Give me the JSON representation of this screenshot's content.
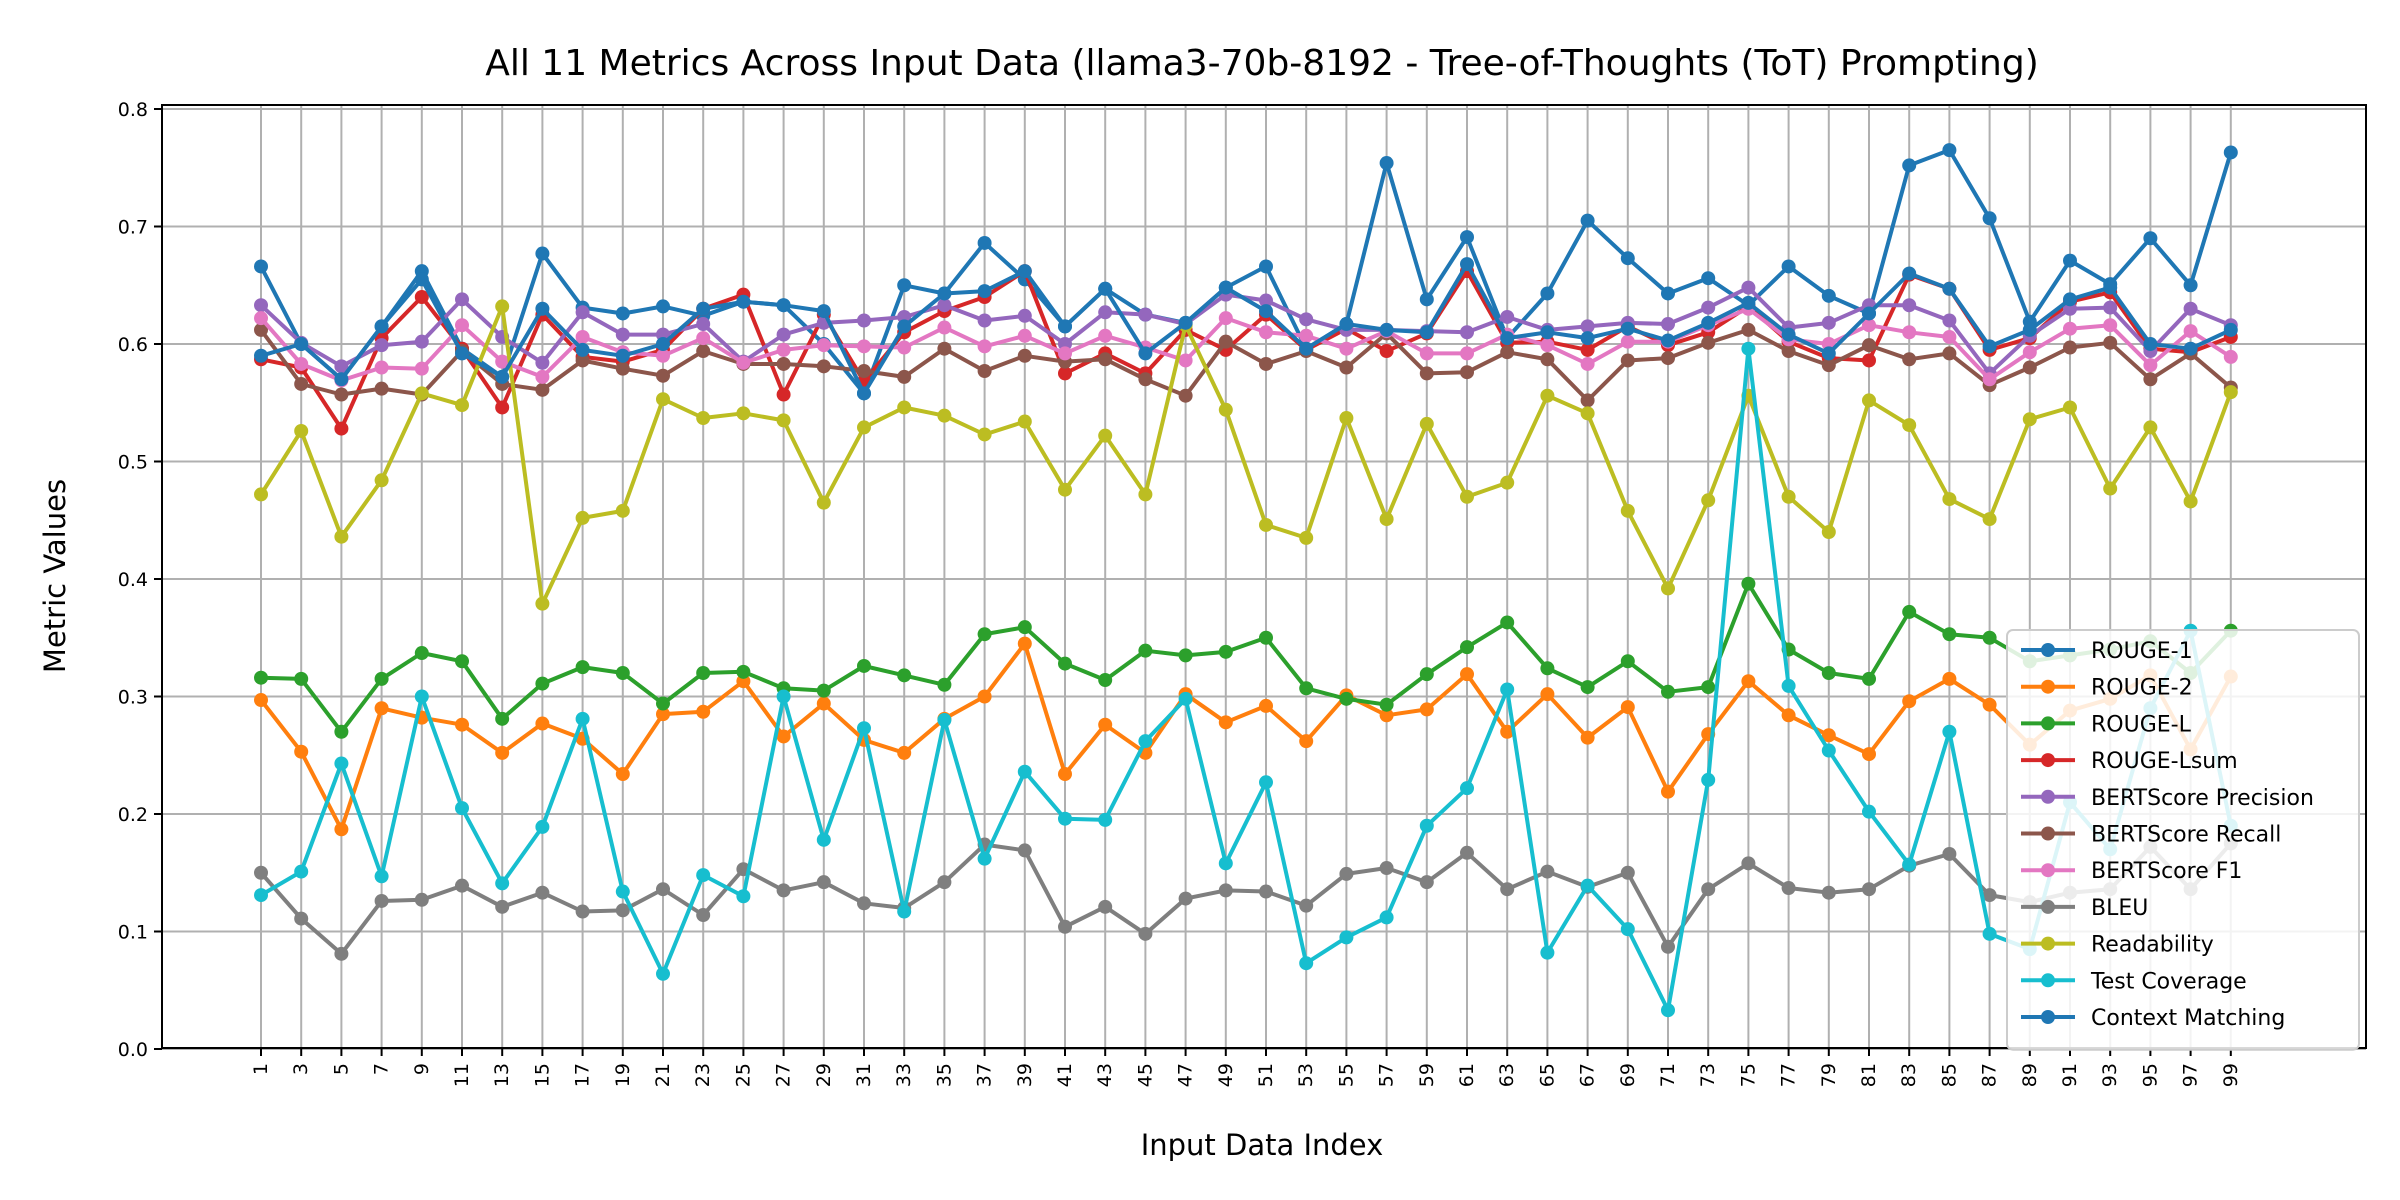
{
  "chart_data": {
    "type": "line",
    "title": "All 11 Metrics Across Input Data (llama3-70b-8192 - Tree-of-Thoughts (ToT) Prompting)",
    "xlabel": "Input Data Index",
    "ylabel": "Metric Values",
    "ylim": [
      0.0,
      0.8
    ],
    "yticks": [
      "0.0",
      "0.1",
      "0.2",
      "0.3",
      "0.4",
      "0.5",
      "0.6",
      "0.7",
      "0.8"
    ],
    "x": [
      1,
      3,
      5,
      7,
      9,
      11,
      13,
      15,
      17,
      19,
      21,
      23,
      25,
      27,
      29,
      31,
      33,
      35,
      37,
      39,
      41,
      43,
      45,
      47,
      49,
      51,
      53,
      55,
      57,
      59,
      61,
      63,
      65,
      67,
      69,
      71,
      73,
      75,
      77,
      79,
      81,
      83,
      85,
      87,
      89,
      91,
      93,
      95,
      97,
      99
    ],
    "xticks": [
      "1",
      "3",
      "5",
      "7",
      "9",
      "11",
      "13",
      "15",
      "17",
      "19",
      "21",
      "23",
      "25",
      "27",
      "29",
      "31",
      "33",
      "35",
      "37",
      "39",
      "41",
      "43",
      "45",
      "47",
      "49",
      "51",
      "53",
      "55",
      "57",
      "59",
      "61",
      "63",
      "65",
      "67",
      "69",
      "71",
      "73",
      "75",
      "77",
      "79",
      "81",
      "83",
      "85",
      "87",
      "89",
      "91",
      "93",
      "95",
      "97",
      "99"
    ],
    "grid": true,
    "legend_position": "lower-right",
    "series": [
      {
        "name": "ROUGE-1",
        "color": "#1f77b4",
        "values": [
          0.666,
          0.6,
          0.57,
          0.615,
          0.662,
          0.596,
          0.572,
          0.677,
          0.631,
          0.626,
          0.632,
          0.624,
          0.636,
          0.633,
          0.6,
          0.558,
          0.65,
          0.643,
          0.686,
          0.655,
          0.615,
          0.647,
          0.625,
          0.618,
          0.648,
          0.666,
          0.596,
          0.617,
          0.754,
          0.638,
          0.691,
          0.605,
          0.643,
          0.705,
          0.673,
          0.643,
          0.656,
          0.633,
          0.666,
          0.641,
          0.626,
          0.752,
          0.765,
          0.707,
          0.619,
          0.671,
          0.651,
          0.69,
          0.65,
          0.763
        ]
      },
      {
        "name": "ROUGE-2",
        "color": "#ff7f0e",
        "values": [
          0.297,
          0.253,
          0.187,
          0.29,
          0.282,
          0.276,
          0.252,
          0.277,
          0.264,
          0.234,
          0.285,
          0.287,
          0.313,
          0.266,
          0.294,
          0.263,
          0.252,
          0.281,
          0.3,
          0.345,
          0.234,
          0.276,
          0.252,
          0.302,
          0.278,
          0.292,
          0.262,
          0.301,
          0.284,
          0.289,
          0.319,
          0.27,
          0.302,
          0.265,
          0.291,
          0.219,
          0.268,
          0.313,
          0.284,
          0.267,
          0.251,
          0.296,
          0.315,
          0.293,
          0.259,
          0.288,
          0.298,
          0.318,
          0.255,
          0.317
        ]
      },
      {
        "name": "ROUGE-L",
        "color": "#2ca02c",
        "values": [
          0.316,
          0.315,
          0.27,
          0.315,
          0.337,
          0.33,
          0.281,
          0.311,
          0.325,
          0.32,
          0.294,
          0.32,
          0.321,
          0.307,
          0.305,
          0.326,
          0.318,
          0.31,
          0.353,
          0.359,
          0.328,
          0.314,
          0.339,
          0.335,
          0.338,
          0.35,
          0.307,
          0.298,
          0.293,
          0.319,
          0.342,
          0.363,
          0.324,
          0.308,
          0.33,
          0.304,
          0.308,
          0.396,
          0.34,
          0.32,
          0.315,
          0.372,
          0.353,
          0.35,
          0.33,
          0.335,
          0.34,
          0.347,
          0.32,
          0.356
        ]
      },
      {
        "name": "ROUGE-Lsum",
        "color": "#d62728",
        "values": [
          0.587,
          0.58,
          0.528,
          0.605,
          0.64,
          0.596,
          0.546,
          0.625,
          0.589,
          0.585,
          0.595,
          0.63,
          0.642,
          0.557,
          0.625,
          0.568,
          0.61,
          0.628,
          0.64,
          0.662,
          0.575,
          0.592,
          0.575,
          0.612,
          0.595,
          0.625,
          0.595,
          0.613,
          0.594,
          0.609,
          0.662,
          0.601,
          0.602,
          0.595,
          0.615,
          0.599,
          0.61,
          0.632,
          0.602,
          0.588,
          0.586,
          0.659,
          0.647,
          0.595,
          0.605,
          0.636,
          0.644,
          0.596,
          0.593,
          0.606
        ]
      },
      {
        "name": "BERTScore Precision",
        "color": "#9467bd",
        "values": [
          0.633,
          0.601,
          0.581,
          0.599,
          0.602,
          0.638,
          0.606,
          0.584,
          0.627,
          0.608,
          0.608,
          0.617,
          0.585,
          0.608,
          0.618,
          0.62,
          0.623,
          0.633,
          0.62,
          0.624,
          0.6,
          0.627,
          0.625,
          0.617,
          0.642,
          0.637,
          0.621,
          0.612,
          0.612,
          0.611,
          0.61,
          0.623,
          0.612,
          0.615,
          0.618,
          0.617,
          0.631,
          0.648,
          0.614,
          0.618,
          0.633,
          0.633,
          0.62,
          0.575,
          0.607,
          0.63,
          0.631,
          0.594,
          0.63,
          0.616
        ]
      },
      {
        "name": "BERTScore Recall",
        "color": "#8c564b",
        "values": [
          0.612,
          0.566,
          0.557,
          0.562,
          0.557,
          0.594,
          0.566,
          0.561,
          0.586,
          0.579,
          0.573,
          0.594,
          0.583,
          0.583,
          0.581,
          0.577,
          0.572,
          0.596,
          0.577,
          0.59,
          0.585,
          0.587,
          0.57,
          0.556,
          0.602,
          0.583,
          0.594,
          0.58,
          0.609,
          0.575,
          0.576,
          0.593,
          0.587,
          0.552,
          0.586,
          0.588,
          0.601,
          0.612,
          0.594,
          0.582,
          0.599,
          0.587,
          0.592,
          0.565,
          0.58,
          0.597,
          0.601,
          0.57,
          0.592,
          0.563
        ]
      },
      {
        "name": "BERTScore F1",
        "color": "#e377c2",
        "values": [
          0.622,
          0.583,
          0.569,
          0.58,
          0.579,
          0.616,
          0.585,
          0.572,
          0.606,
          0.593,
          0.59,
          0.605,
          0.584,
          0.595,
          0.599,
          0.598,
          0.597,
          0.614,
          0.598,
          0.607,
          0.592,
          0.607,
          0.597,
          0.586,
          0.622,
          0.61,
          0.607,
          0.596,
          0.611,
          0.592,
          0.592,
          0.608,
          0.599,
          0.583,
          0.602,
          0.602,
          0.616,
          0.63,
          0.604,
          0.6,
          0.616,
          0.61,
          0.606,
          0.57,
          0.593,
          0.613,
          0.616,
          0.582,
          0.611,
          0.589
        ]
      },
      {
        "name": "BLEU",
        "color": "#7f7f7f",
        "values": [
          0.15,
          0.111,
          0.081,
          0.126,
          0.127,
          0.139,
          0.121,
          0.133,
          0.117,
          0.118,
          0.136,
          0.114,
          0.153,
          0.135,
          0.142,
          0.124,
          0.12,
          0.142,
          0.174,
          0.169,
          0.104,
          0.121,
          0.098,
          0.128,
          0.135,
          0.134,
          0.122,
          0.149,
          0.154,
          0.142,
          0.167,
          0.136,
          0.151,
          0.138,
          0.15,
          0.087,
          0.136,
          0.158,
          0.137,
          0.133,
          0.136,
          0.156,
          0.166,
          0.131,
          0.125,
          0.133,
          0.136,
          0.172,
          0.136,
          0.175
        ]
      },
      {
        "name": "Readability",
        "color": "#bcbd22",
        "values": [
          0.472,
          0.526,
          0.436,
          0.484,
          0.558,
          0.548,
          0.632,
          0.379,
          0.452,
          0.458,
          0.553,
          0.537,
          0.541,
          0.535,
          0.465,
          0.529,
          0.546,
          0.539,
          0.523,
          0.534,
          0.476,
          0.522,
          0.472,
          0.616,
          0.544,
          0.446,
          0.435,
          0.537,
          0.451,
          0.532,
          0.47,
          0.482,
          0.556,
          0.541,
          0.458,
          0.392,
          0.467,
          0.556,
          0.47,
          0.44,
          0.552,
          0.531,
          0.468,
          0.451,
          0.536,
          0.546,
          0.477,
          0.529,
          0.466,
          0.559
        ]
      },
      {
        "name": "Test Coverage",
        "color": "#17becf",
        "values": [
          0.131,
          0.151,
          0.243,
          0.147,
          0.3,
          0.205,
          0.141,
          0.189,
          0.281,
          0.134,
          0.064,
          0.148,
          0.13,
          0.3,
          0.178,
          0.273,
          0.117,
          0.28,
          0.162,
          0.236,
          0.196,
          0.195,
          0.262,
          0.298,
          0.158,
          0.227,
          0.073,
          0.095,
          0.112,
          0.19,
          0.222,
          0.306,
          0.082,
          0.139,
          0.102,
          0.033,
          0.229,
          0.596,
          0.309,
          0.254,
          0.202,
          0.157,
          0.27,
          0.098,
          0.085,
          0.21,
          0.17,
          0.29,
          0.356,
          0.19
        ]
      },
      {
        "name": "Context Matching",
        "color": "#1f77b4",
        "values": [
          0.59,
          0.6,
          0.57,
          0.615,
          0.655,
          0.592,
          0.572,
          0.63,
          0.595,
          0.59,
          0.6,
          0.63,
          0.636,
          0.633,
          0.628,
          0.558,
          0.615,
          0.643,
          0.645,
          0.662,
          0.615,
          0.647,
          0.592,
          0.618,
          0.648,
          0.628,
          0.596,
          0.617,
          0.612,
          0.61,
          0.668,
          0.605,
          0.61,
          0.605,
          0.613,
          0.603,
          0.618,
          0.635,
          0.608,
          0.592,
          0.626,
          0.66,
          0.647,
          0.598,
          0.612,
          0.638,
          0.648,
          0.6,
          0.596,
          0.612
        ]
      }
    ]
  }
}
